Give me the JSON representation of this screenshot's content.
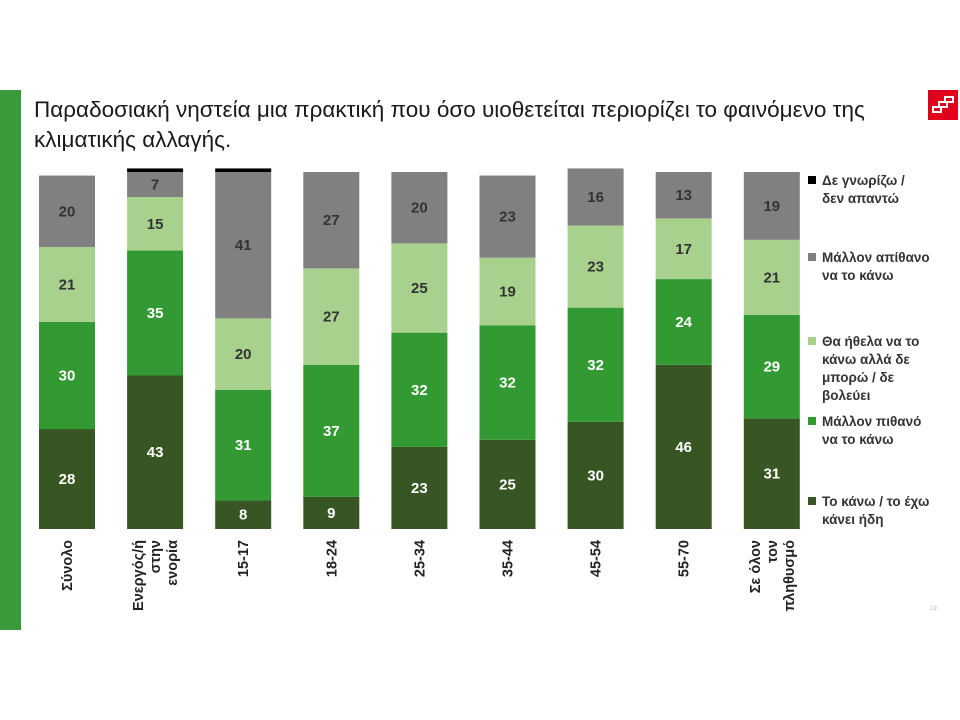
{
  "title": "Παραδοσιακή νηστεία μια πρακτική που όσο υιοθετείται περιορίζει το φαινόμενο της κλιματικής αλλαγής.",
  "page_number": "19",
  "colors": {
    "left_bar": "#3a9a3a",
    "logo_red": "#e0001b"
  },
  "legend": [
    {
      "label": "Δε γνωρίζω /\nδεν απαντώ",
      "color": "#000000"
    },
    {
      "label": "Μάλλον απίθανο\nνα το κάνω",
      "color": "#808080"
    },
    {
      "label": "Θα ήθελα να το\nκάνω αλλά δε\nμπορώ / δε\nβολεύει",
      "color": "#a9d18e"
    },
    {
      "label": "Μάλλον πιθανό\nνα το κάνω",
      "color": "#339933"
    },
    {
      "label": "Το κάνω / το έχω\nκάνει ήδη",
      "color": "#375623"
    }
  ],
  "chart_data": {
    "type": "bar",
    "stacked": true,
    "ylim": [
      0,
      100
    ],
    "grid": false,
    "legend_position": "right",
    "categories": [
      "Σύνολο",
      "Ενεργός/ή\nστην\nενορία",
      "15-17",
      "18-24",
      "25-34",
      "35-44",
      "45-54",
      "55-70",
      "Σε όλον\nτον\nπληθυσμό"
    ],
    "series": [
      {
        "name": "Το κάνω / το έχω κάνει ήδη",
        "color": "#375623",
        "label_color": "#ffffff",
        "values": [
          28,
          43,
          8,
          9,
          23,
          25,
          30,
          46,
          31
        ]
      },
      {
        "name": "Μάλλον πιθανό να το κάνω",
        "color": "#339933",
        "label_color": "#ffffff",
        "values": [
          30,
          35,
          31,
          37,
          32,
          32,
          32,
          24,
          29
        ]
      },
      {
        "name": "Θα ήθελα να το κάνω αλλά δε μπορώ / δε βολεύει",
        "color": "#a9d18e",
        "label_color": "#333333",
        "values": [
          21,
          15,
          20,
          27,
          25,
          19,
          23,
          17,
          21
        ]
      },
      {
        "name": "Μάλλον απίθανο να το κάνω",
        "color": "#808080",
        "label_color": "#333333",
        "values": [
          20,
          7,
          41,
          27,
          20,
          23,
          16,
          13,
          19
        ]
      },
      {
        "name": "Δε γνωρίζω / δεν απαντώ",
        "color": "#000000",
        "label_color": "#ffffff",
        "values": [
          0,
          1,
          1,
          0,
          0,
          0,
          0,
          0,
          0
        ]
      }
    ]
  }
}
